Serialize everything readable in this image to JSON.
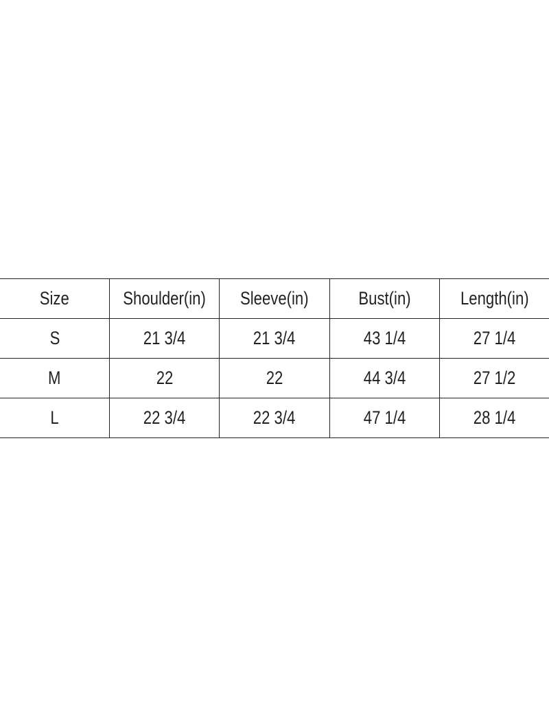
{
  "size_chart": {
    "headers": [
      "Size",
      "Shoulder(in)",
      "Sleeve(in)",
      "Bust(in)",
      "Length(in)"
    ],
    "rows": [
      [
        "S",
        "21 3/4",
        "21 3/4",
        "43 1/4",
        "27 1/4"
      ],
      [
        "M",
        "22",
        "22",
        "44 3/4",
        "27 1/2"
      ],
      [
        "L",
        "22 3/4",
        "22 3/4",
        "47 1/4",
        "28 1/4"
      ]
    ]
  }
}
